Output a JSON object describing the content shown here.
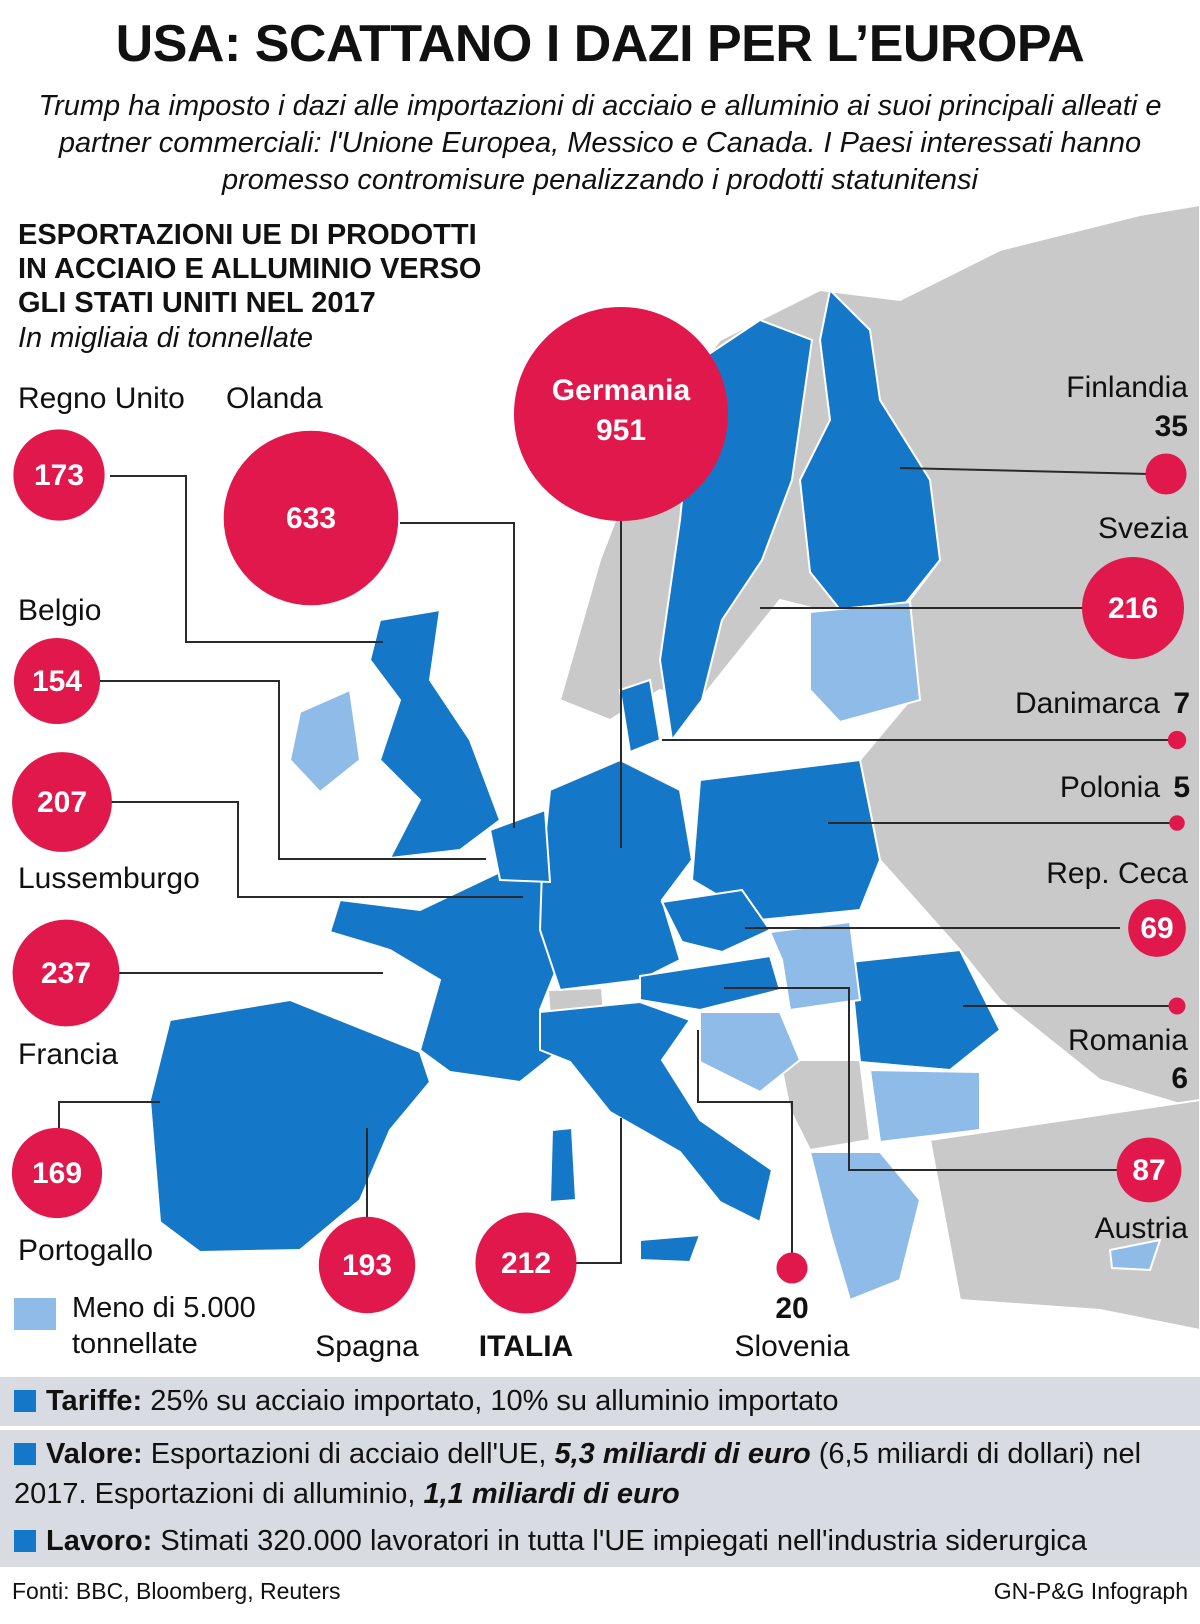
{
  "header": {
    "title": "USA: SCATTANO I DAZI PER L’EUROPA",
    "subtitle": "Trump ha imposto i dazi alle importazioni di acciaio e alluminio ai suoi principali alleati e partner commerciali: l'Unione Europea, Messico e Canada. I Paesi interessati hanno promesso contromisure penalizzando i prodotti statunitensi"
  },
  "map": {
    "title": [
      "ESPORTAZIONI UE DI PRODOTTI",
      "IN ACCIAIO E ALLUMINIO VERSO",
      "GLI STATI UNITI NEL 2017"
    ],
    "unit": "In migliaia di tonnellate",
    "countries": [
      {
        "name": "Germania",
        "value": 951
      },
      {
        "name": "Regno Unito",
        "value": 173
      },
      {
        "name": "Olanda",
        "value": 633
      },
      {
        "name": "Belgio",
        "value": 154
      },
      {
        "name": "Lussemburgo",
        "value": 207
      },
      {
        "name": "Francia",
        "value": 237
      },
      {
        "name": "Portogallo",
        "value": 169
      },
      {
        "name": "Spagna",
        "value": 193
      },
      {
        "name": "ITALIA",
        "value": 212
      },
      {
        "name": "Slovenia",
        "value": 20
      },
      {
        "name": "Finlandia",
        "value": 35
      },
      {
        "name": "Svezia",
        "value": 216
      },
      {
        "name": "Danimarca",
        "value": 7
      },
      {
        "name": "Polonia",
        "value": 5
      },
      {
        "name": "Rep. Ceca",
        "value": 69
      },
      {
        "name": "Romania",
        "value": 6
      },
      {
        "name": "Austria",
        "value": 87
      }
    ],
    "legend": "Meno di 5.000 tonnellate"
  },
  "facts": [
    {
      "label": "Tariffe:",
      "parts": [
        {
          "text": "25% su acciaio importato, 10% su alluminio importato",
          "emphasis": false
        }
      ]
    },
    {
      "label": "Valore:",
      "parts": [
        {
          "text": "Esportazioni di acciaio dell'UE, ",
          "emphasis": false
        },
        {
          "text": "5,3 miliardi di euro",
          "emphasis": true
        },
        {
          "text": " (6,5 miliardi di dollari) nel 2017. Esportazioni di alluminio, ",
          "emphasis": false
        },
        {
          "text": "1,1 miliardi di euro",
          "emphasis": true
        }
      ]
    },
    {
      "label": "Lavoro:",
      "parts": [
        {
          "text": "Stimati 320.000 lavoratori in tutta l'UE impiegati nell'industria siderurgica",
          "emphasis": false
        }
      ]
    }
  ],
  "footer": {
    "sources": "Fonti: BBC, Bloomberg, Reuters",
    "credit": "GN-P&G Infograph"
  }
}
